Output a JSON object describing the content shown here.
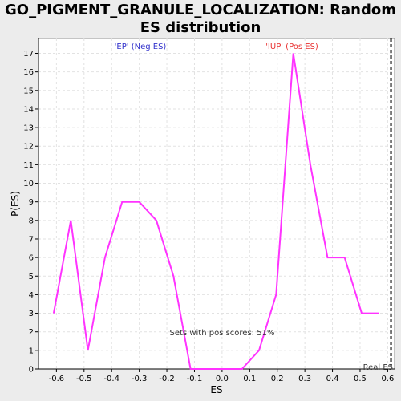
{
  "chart_data": {
    "type": "line",
    "title": "GO_PIGMENT_GRANULE_LOCALIZATION: Random ES distribution",
    "xlabel": "ES",
    "ylabel": "P(ES)",
    "xlim": [
      -0.665,
      0.625
    ],
    "ylim": [
      0,
      17.8
    ],
    "x_ticks": [
      "-0.6",
      "-0.5",
      "-0.4",
      "-0.3",
      "-0.2",
      "-0.1",
      "0.0",
      "0.1",
      "0.2",
      "0.3",
      "0.4",
      "0.5",
      "0.6"
    ],
    "y_ticks": [
      "0",
      "1",
      "2",
      "3",
      "4",
      "5",
      "6",
      "7",
      "8",
      "9",
      "10",
      "11",
      "12",
      "13",
      "14",
      "15",
      "16",
      "17"
    ],
    "grid": true,
    "series": [
      {
        "color": "#ff33ff",
        "x": [
          -0.61,
          -0.548,
          -0.486,
          -0.424,
          -0.362,
          -0.3,
          -0.238,
          -0.176,
          -0.114,
          -0.052,
          0.01,
          0.072,
          0.134,
          0.196,
          0.258,
          0.32,
          0.382,
          0.444,
          0.506,
          0.568
        ],
        "y": [
          3,
          8,
          1,
          6,
          9,
          9,
          8,
          5,
          0,
          0,
          0,
          0,
          1,
          4,
          17,
          11,
          6,
          6,
          3,
          3
        ]
      }
    ],
    "annotations": {
      "neg_label": "'EP' (Neg ES)",
      "pos_label": "'IUP' (Pos ES)",
      "sets_text": "Sets with pos scores: 51%",
      "real_es_label": "Real ES",
      "real_es_x": 0.612
    },
    "colors": {
      "neg": "#3333cc",
      "pos": "#e83030",
      "line": "#ff33ff",
      "real_es": "#000000"
    }
  }
}
